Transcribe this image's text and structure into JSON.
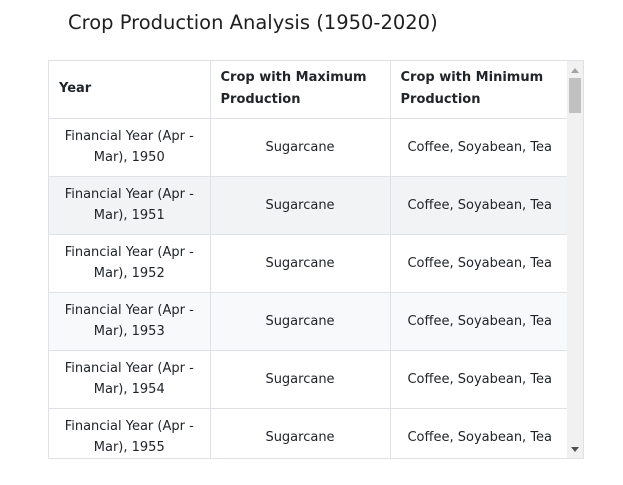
{
  "page": {
    "title": "Crop Production Analysis (1950-2020)"
  },
  "table": {
    "headers": [
      "Year",
      "Crop with Maximum Production",
      "Crop with Minimum Production"
    ],
    "rows": [
      [
        "Financial Year (Apr - Mar), 1950",
        "Sugarcane",
        "Coffee, Soyabean, Tea"
      ],
      [
        "Financial Year (Apr - Mar), 1951",
        "Sugarcane",
        "Coffee, Soyabean, Tea"
      ],
      [
        "Financial Year (Apr - Mar), 1952",
        "Sugarcane",
        "Coffee, Soyabean, Tea"
      ],
      [
        "Financial Year (Apr - Mar), 1953",
        "Sugarcane",
        "Coffee, Soyabean, Tea"
      ],
      [
        "Financial Year (Apr - Mar), 1954",
        "Sugarcane",
        "Coffee, Soyabean, Tea"
      ],
      [
        "Financial Year (Apr - Mar), 1955",
        "Sugarcane",
        "Coffee, Soyabean, Tea"
      ]
    ]
  },
  "colors": {
    "border": "#dee2e6",
    "striped_row": "#f2f3f4",
    "scrollbar_track": "#f1f1f1",
    "scrollbar_thumb": "#c1c1c1"
  },
  "icons": {
    "scroll_up": "triangle-up",
    "scroll_down": "triangle-down"
  }
}
